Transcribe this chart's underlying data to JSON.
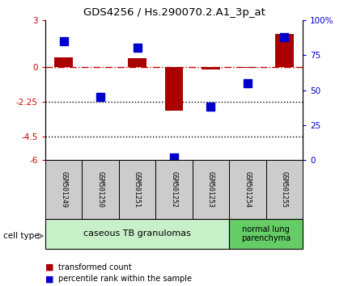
{
  "title": "GDS4256 / Hs.290070.2.A1_3p_at",
  "samples": [
    "GSM501249",
    "GSM501250",
    "GSM501251",
    "GSM501252",
    "GSM501253",
    "GSM501254",
    "GSM501255"
  ],
  "transformed_count": [
    0.6,
    0.0,
    0.55,
    -2.8,
    -0.2,
    -0.05,
    2.1
  ],
  "percentile_rank": [
    85,
    45,
    80,
    2,
    38,
    55,
    88
  ],
  "ylim_left": [
    -6,
    3
  ],
  "ylim_right": [
    0,
    100
  ],
  "yticks_left": [
    -6,
    -4.5,
    -2.25,
    0,
    3
  ],
  "yticks_right": [
    0,
    25,
    50,
    75,
    100
  ],
  "ytick_labels_left": [
    "-6",
    "-4.5",
    "-2.25",
    "0",
    "3"
  ],
  "ytick_labels_right": [
    "0",
    "25",
    "50",
    "75",
    "100%"
  ],
  "hline_values": [
    -2.25,
    -4.5
  ],
  "zero_line_color": "#cc0000",
  "bar_color": "#aa0000",
  "marker_color": "#0000cc",
  "group1_samples": [
    0,
    1,
    2,
    3,
    4
  ],
  "group2_samples": [
    5,
    6
  ],
  "group1_label": "caseous TB granulomas",
  "group2_label": "normal lung\nparenchyma",
  "group1_color": "#c8f0c8",
  "group2_color": "#66cc66",
  "cell_type_label": "cell type",
  "legend_bar_label": "transformed count",
  "legend_marker_label": "percentile rank within the sample",
  "left_tick_color": "#cc0000",
  "right_tick_color": "#0000cc",
  "bar_width": 0.5,
  "marker_size": 7,
  "sample_box_color": "#cccccc",
  "title_fontsize": 9.5
}
